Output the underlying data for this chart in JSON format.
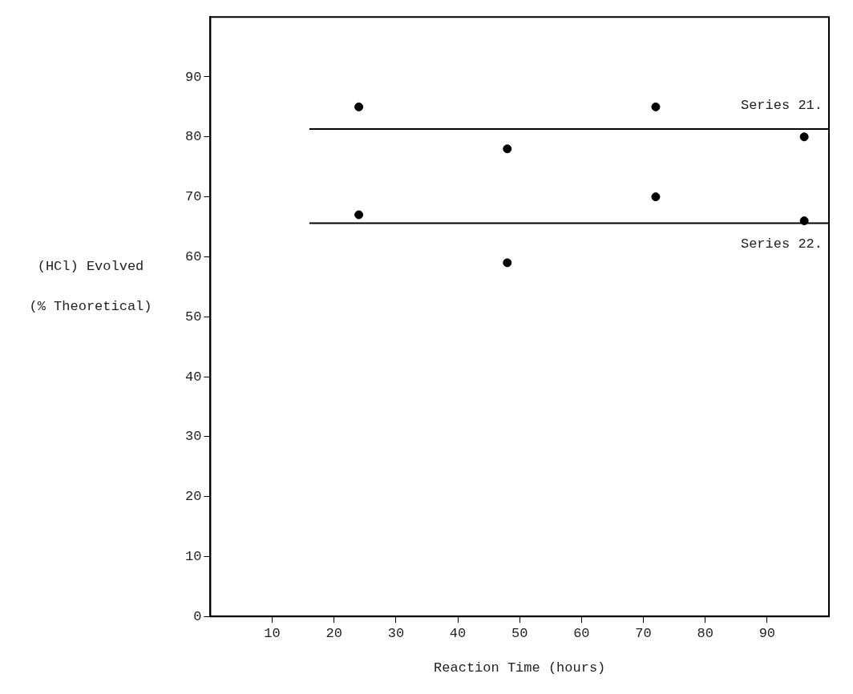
{
  "chart_data": {
    "type": "scatter",
    "xlabel": "Reaction Time (hours)",
    "ylabel": "(HCl) Evolved\n(% Theoretical)",
    "xlim": [
      0,
      100
    ],
    "xticks": [
      10,
      20,
      30,
      40,
      50,
      60,
      70,
      80,
      90
    ],
    "ylim": [
      0,
      100
    ],
    "yticks": [
      0,
      10,
      20,
      30,
      40,
      50,
      60,
      70,
      80,
      90
    ],
    "grid": false,
    "marker": "circle",
    "series": [
      {
        "color": "#000000",
        "x": [
          24,
          48,
          72,
          96
        ],
        "values": [
          85,
          78,
          85,
          80
        ]
      },
      {
        "color": "#000000",
        "x": [
          24,
          48,
          72,
          96
        ],
        "values": [
          67,
          59,
          70,
          66
        ]
      },
      {
        "type": "line",
        "name": "Series 21.",
        "marker": "none",
        "color": "#000000",
        "x": [
          16,
          100
        ],
        "values": [
          81.3,
          81.3
        ]
      },
      {
        "type": "line",
        "name": "Series 22.",
        "marker": "none",
        "color": "#000000",
        "x": [
          16,
          100
        ],
        "values": [
          65.6,
          65.6
        ]
      }
    ]
  }
}
